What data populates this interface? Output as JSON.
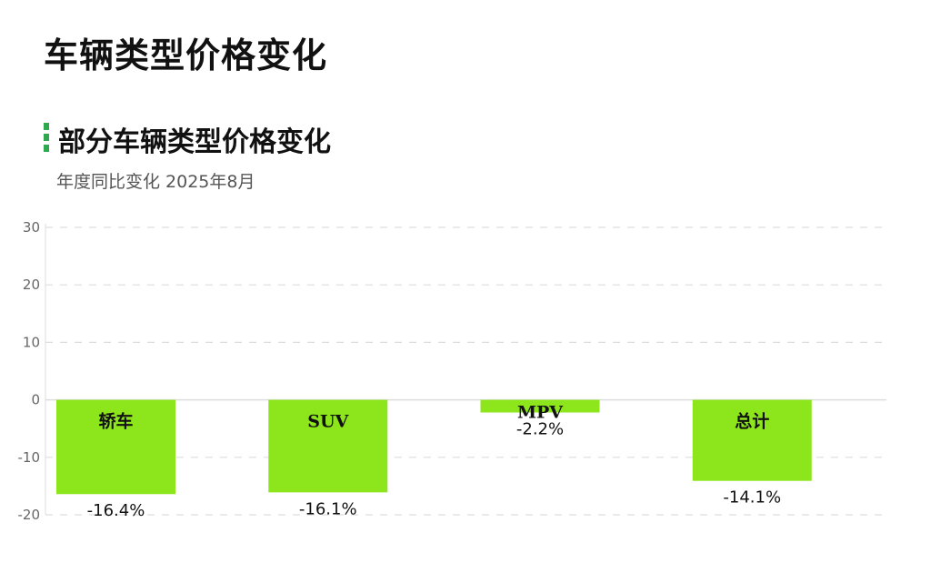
{
  "page": {
    "title": "车辆类型价格变化"
  },
  "chart_data": {
    "type": "bar",
    "title": "部分车辆类型价格变化",
    "subtitle": "年度同比变化 2025年8月",
    "categories": [
      "轿车",
      "SUV",
      "MPV",
      "总计"
    ],
    "values": [
      -16.4,
      -16.1,
      -2.2,
      -14.1
    ],
    "value_labels": [
      "-16.4%",
      "-16.1%",
      "-2.2%",
      "-14.1%"
    ],
    "yticks": [
      30,
      20,
      10,
      0,
      -10,
      -20
    ],
    "ylim": [
      -20,
      30
    ],
    "grid": true,
    "colors": {
      "bar": "#8de61c",
      "grid": "#dddddd",
      "accent": "#2fa84f"
    }
  }
}
